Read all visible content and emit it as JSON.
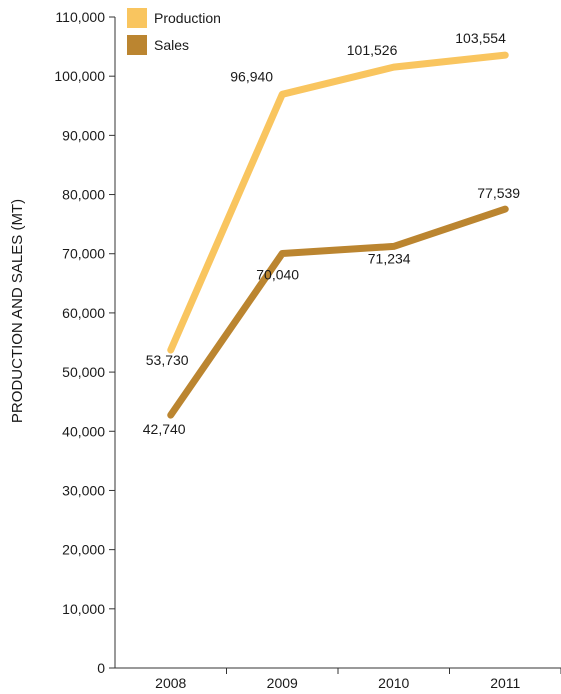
{
  "chart_data": {
    "type": "line",
    "title": "",
    "xlabel": "",
    "ylabel": "PRODUCTION AND SALES (MT)",
    "categories": [
      "2008",
      "2009",
      "2010",
      "2011"
    ],
    "ylim": [
      0,
      110000
    ],
    "yticks": [
      0,
      10000,
      20000,
      30000,
      40000,
      50000,
      60000,
      70000,
      80000,
      90000,
      100000,
      110000
    ],
    "ytick_labels": [
      "0",
      "10,000",
      "20,000",
      "30,000",
      "40,000",
      "50,000",
      "60,000",
      "70,000",
      "80,000",
      "90,000",
      "100,000",
      "110,000"
    ],
    "grid": false,
    "legend_position": "top-left",
    "series": [
      {
        "name": "Production",
        "color": "#f9c55f",
        "values": [
          53730,
          96940,
          101526,
          103554
        ],
        "labels": [
          "53,730",
          "96,940",
          "101,526",
          "103,554"
        ]
      },
      {
        "name": "Sales",
        "color": "#bb8530",
        "values": [
          42740,
          70040,
          71234,
          77539
        ],
        "labels": [
          "42,740",
          "70,040",
          "71,234",
          "77,539"
        ]
      }
    ]
  }
}
